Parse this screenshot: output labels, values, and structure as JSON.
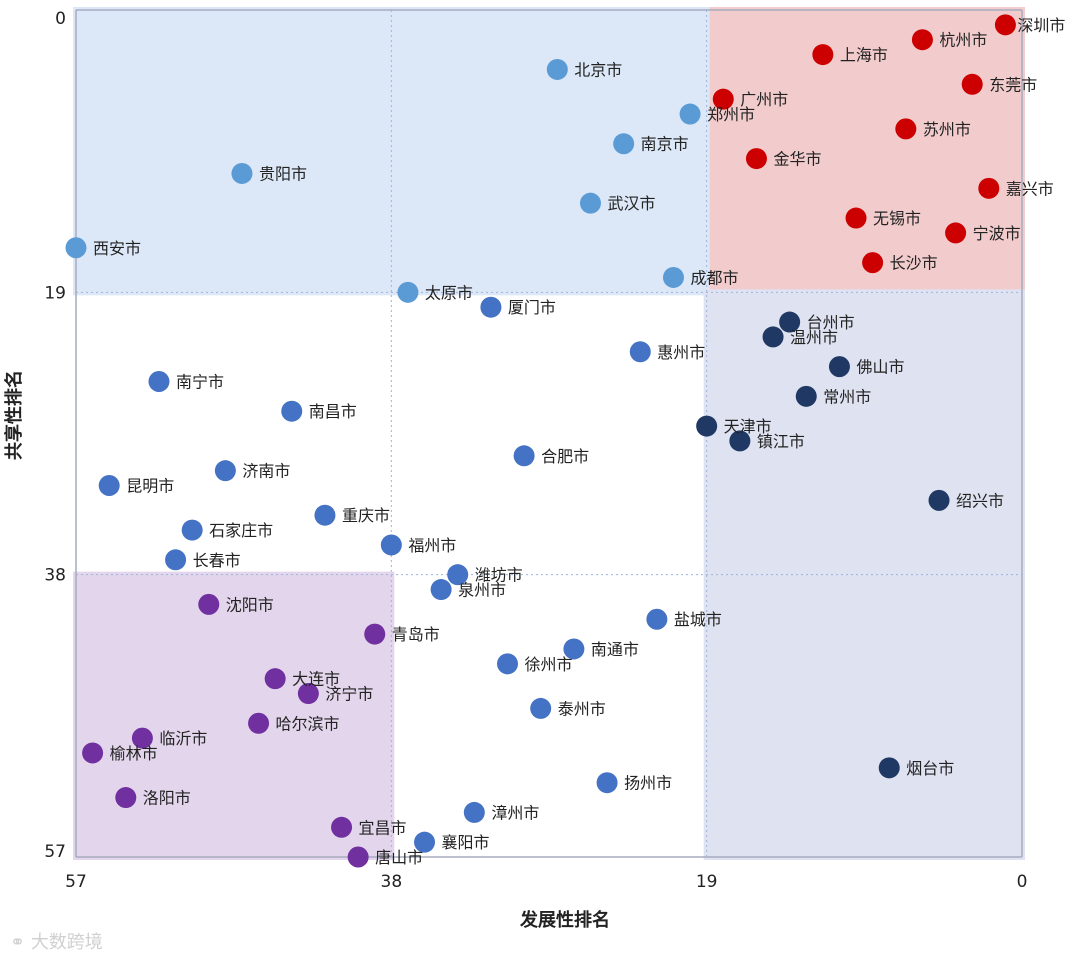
{
  "chart_data": {
    "type": "scatter",
    "xlabel": "发展性排名",
    "ylabel": "共享性排名",
    "xlim": [
      57,
      0
    ],
    "ylim": [
      0,
      57
    ],
    "xticks": [
      57,
      38,
      19,
      0
    ],
    "yticks": [
      0,
      19,
      38,
      57
    ],
    "grid": true,
    "quadrants": [
      {
        "x": [
          19,
          0
        ],
        "y": [
          0,
          19
        ],
        "color": "#f2cccc"
      },
      {
        "x": [
          57,
          19
        ],
        "y": [
          0,
          19
        ],
        "color": "#dce8f8"
      },
      {
        "x": [
          19,
          0
        ],
        "y": [
          19,
          57
        ],
        "color": "#dfe2f0"
      },
      {
        "x": [
          57,
          38
        ],
        "y": [
          38,
          57
        ],
        "color": "#e3d6ec"
      }
    ],
    "groups": [
      {
        "color": "#cc0000",
        "points": [
          {
            "label": "深圳市",
            "x": 1,
            "y": 1
          },
          {
            "label": "杭州市",
            "x": 6,
            "y": 2
          },
          {
            "label": "上海市",
            "x": 12,
            "y": 3
          },
          {
            "label": "东莞市",
            "x": 3,
            "y": 5
          },
          {
            "label": "广州市",
            "x": 18,
            "y": 6
          },
          {
            "label": "苏州市",
            "x": 7,
            "y": 8
          },
          {
            "label": "金华市",
            "x": 16,
            "y": 10
          },
          {
            "label": "嘉兴市",
            "x": 2,
            "y": 12
          },
          {
            "label": "无锡市",
            "x": 10,
            "y": 14
          },
          {
            "label": "宁波市",
            "x": 4,
            "y": 15
          },
          {
            "label": "长沙市",
            "x": 9,
            "y": 17
          }
        ]
      },
      {
        "color": "#5b9bd5",
        "points": [
          {
            "label": "北京市",
            "x": 28,
            "y": 4
          },
          {
            "label": "郑州市",
            "x": 20,
            "y": 7
          },
          {
            "label": "南京市",
            "x": 24,
            "y": 9
          },
          {
            "label": "贵阳市",
            "x": 47,
            "y": 11
          },
          {
            "label": "武汉市",
            "x": 26,
            "y": 13
          },
          {
            "label": "西安市",
            "x": 57,
            "y": 16
          },
          {
            "label": "成都市",
            "x": 21,
            "y": 18
          },
          {
            "label": "太原市",
            "x": 37,
            "y": 19
          }
        ]
      },
      {
        "color": "#4472c4",
        "points": [
          {
            "label": "厦门市",
            "x": 32,
            "y": 20
          },
          {
            "label": "惠州市",
            "x": 23,
            "y": 23
          },
          {
            "label": "南宁市",
            "x": 52,
            "y": 25
          },
          {
            "label": "南昌市",
            "x": 44,
            "y": 27
          },
          {
            "label": "合肥市",
            "x": 30,
            "y": 30
          },
          {
            "label": "济南市",
            "x": 48,
            "y": 31
          },
          {
            "label": "昆明市",
            "x": 55,
            "y": 32
          },
          {
            "label": "重庆市",
            "x": 42,
            "y": 34
          },
          {
            "label": "石家庄市",
            "x": 50,
            "y": 35
          },
          {
            "label": "福州市",
            "x": 38,
            "y": 36
          },
          {
            "label": "长春市",
            "x": 51,
            "y": 37
          },
          {
            "label": "潍坊市",
            "x": 34,
            "y": 38
          },
          {
            "label": "泉州市",
            "x": 35,
            "y": 39
          },
          {
            "label": "盐城市",
            "x": 22,
            "y": 41
          },
          {
            "label": "南通市",
            "x": 27,
            "y": 43
          },
          {
            "label": "徐州市",
            "x": 31,
            "y": 44
          },
          {
            "label": "泰州市",
            "x": 29,
            "y": 47
          },
          {
            "label": "扬州市",
            "x": 25,
            "y": 52
          },
          {
            "label": "漳州市",
            "x": 33,
            "y": 54
          },
          {
            "label": "襄阳市",
            "x": 36,
            "y": 56
          }
        ]
      },
      {
        "color": "#1f3864",
        "points": [
          {
            "label": "台州市",
            "x": 14,
            "y": 21
          },
          {
            "label": "温州市",
            "x": 15,
            "y": 22
          },
          {
            "label": "佛山市",
            "x": 11,
            "y": 24
          },
          {
            "label": "常州市",
            "x": 13,
            "y": 26
          },
          {
            "label": "天津市",
            "x": 19,
            "y": 28
          },
          {
            "label": "镇江市",
            "x": 17,
            "y": 29
          },
          {
            "label": "绍兴市",
            "x": 5,
            "y": 33
          },
          {
            "label": "烟台市",
            "x": 8,
            "y": 51
          }
        ]
      },
      {
        "color": "#7030a0",
        "points": [
          {
            "label": "沈阳市",
            "x": 49,
            "y": 40
          },
          {
            "label": "青岛市",
            "x": 39,
            "y": 42
          },
          {
            "label": "大连市",
            "x": 45,
            "y": 45
          },
          {
            "label": "济宁市",
            "x": 43,
            "y": 46
          },
          {
            "label": "哈尔滨市",
            "x": 46,
            "y": 48
          },
          {
            "label": "临沂市",
            "x": 53,
            "y": 49
          },
          {
            "label": "榆林市",
            "x": 56,
            "y": 50
          },
          {
            "label": "洛阳市",
            "x": 54,
            "y": 53
          },
          {
            "label": "宜昌市",
            "x": 41,
            "y": 55
          },
          {
            "label": "唐山市",
            "x": 40,
            "y": 57
          }
        ]
      }
    ]
  },
  "watermark": "大数跨境"
}
